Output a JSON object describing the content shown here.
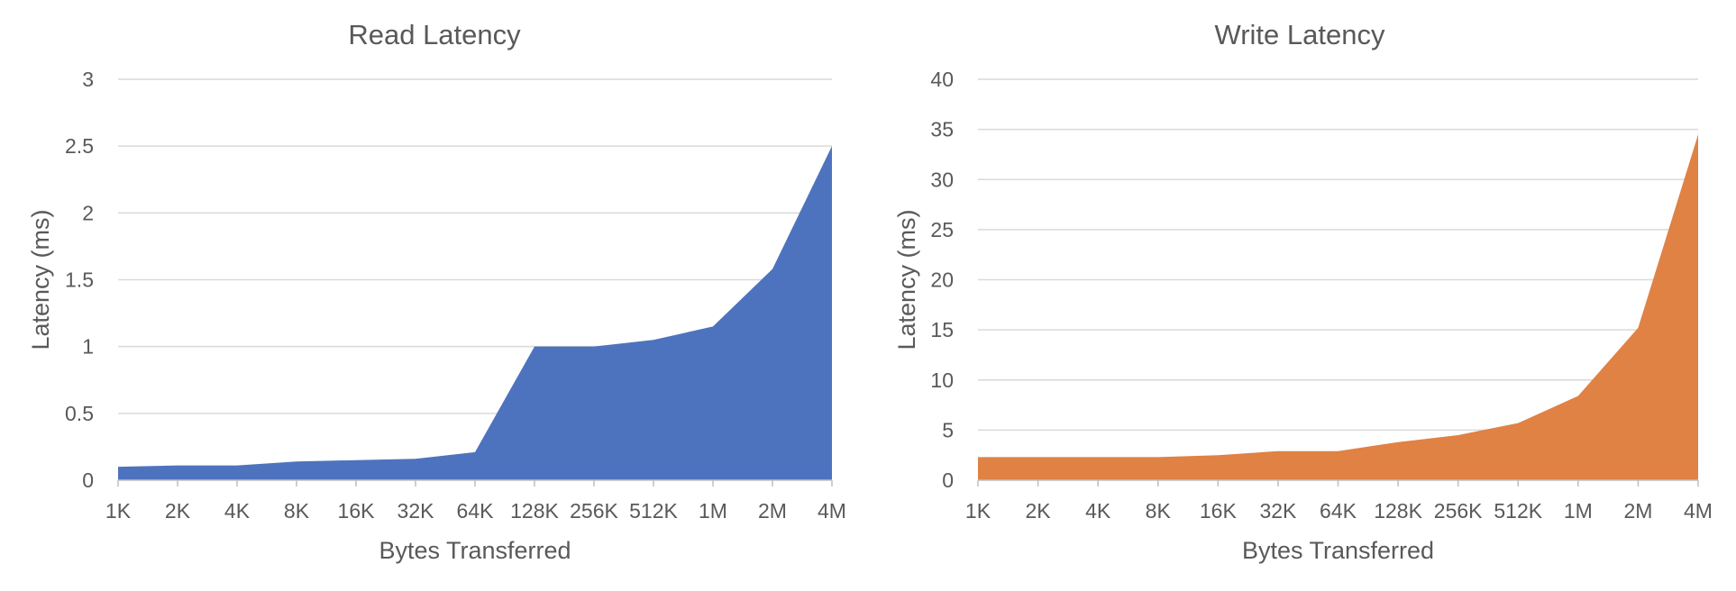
{
  "chart_data": [
    {
      "type": "area",
      "title": "Read Latency",
      "xlabel": "Bytes Transferred",
      "ylabel": "Latency (ms)",
      "categories": [
        "1K",
        "2K",
        "4K",
        "8K",
        "16K",
        "32K",
        "64K",
        "128K",
        "256K",
        "512K",
        "1M",
        "2M",
        "4M"
      ],
      "values": [
        0.1,
        0.11,
        0.11,
        0.14,
        0.15,
        0.16,
        0.21,
        1.0,
        1.0,
        1.05,
        1.15,
        1.58,
        2.5
      ],
      "ylim": [
        0,
        3
      ],
      "yticks": [
        0,
        0.5,
        1,
        1.5,
        2,
        2.5,
        3
      ],
      "ytick_labels": [
        "0",
        "0.5",
        "1",
        "1.5",
        "2",
        "2.5",
        "3"
      ],
      "color": "#4e73be",
      "grid": true
    },
    {
      "type": "area",
      "title": "Write Latency",
      "xlabel": "Bytes Transferred",
      "ylabel": "Latency (ms)",
      "categories": [
        "1K",
        "2K",
        "4K",
        "8K",
        "16K",
        "32K",
        "64K",
        "128K",
        "256K",
        "512K",
        "1M",
        "2M",
        "4M"
      ],
      "values": [
        2.3,
        2.3,
        2.3,
        2.3,
        2.5,
        2.9,
        2.9,
        3.8,
        4.5,
        5.7,
        8.4,
        15.2,
        34.5
      ],
      "ylim": [
        0,
        40
      ],
      "yticks": [
        0,
        5,
        10,
        15,
        20,
        25,
        30,
        35,
        40
      ],
      "ytick_labels": [
        "0",
        "5",
        "10",
        "15",
        "20",
        "25",
        "30",
        "35",
        "40"
      ],
      "color": "#df8244",
      "grid": true
    }
  ]
}
